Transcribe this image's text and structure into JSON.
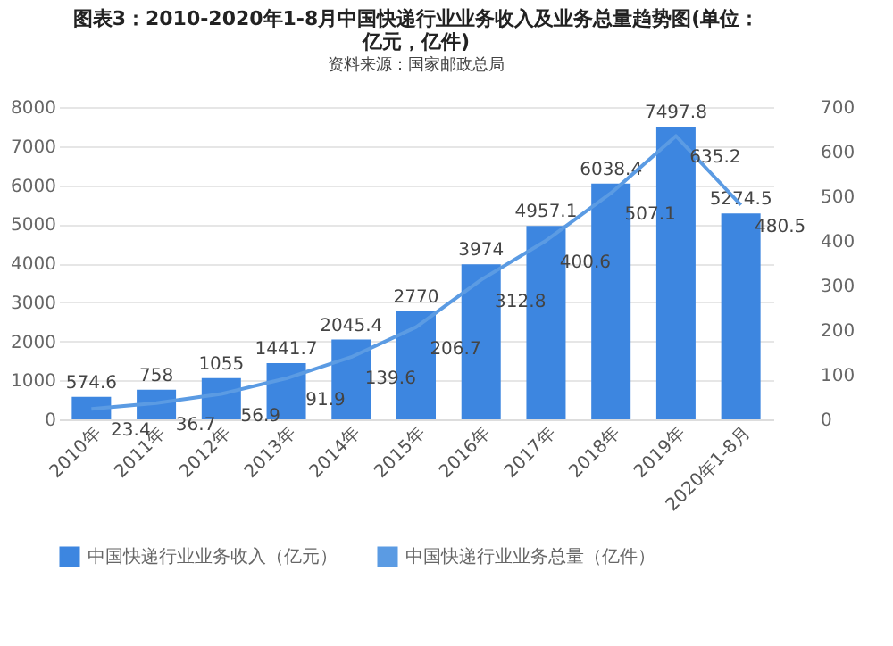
{
  "chart_data": {
    "type": "bar",
    "title": "图表3：2010-2020年1-8月中国快递行业业务收入及业务总量趋势图(单位：亿元，亿件)",
    "categories": [
      "2010年",
      "2011年",
      "2012年",
      "2013年",
      "2014年",
      "2015年",
      "2016年",
      "2017年",
      "2018年",
      "2019年",
      "2020年1-8月"
    ],
    "series": [
      {
        "name": "中国快递行业业务收入（亿元）",
        "color": "#3d86e0",
        "values": [
          574.6,
          758,
          1055,
          1441.7,
          2045.4,
          2770,
          3974,
          4957.1,
          6038.4,
          7497.8,
          5274.5
        ]
      },
      {
        "name": "中国快递行业业务总量（亿件）",
        "type": "line",
        "axis": "y2",
        "color": "#5b9be3",
        "values": [
          23.4,
          36.7,
          56.9,
          91.9,
          139.6,
          206.7,
          312.8,
          400.6,
          507.1,
          635.2,
          480.5
        ]
      }
    ],
    "ylim": [
      0,
      8000
    ],
    "yticks": [
      0,
      1000,
      2000,
      3000,
      4000,
      5000,
      6000,
      7000,
      8000
    ],
    "y2lim": [
      0,
      700
    ],
    "y2ticks": [
      0,
      100,
      200,
      300,
      400,
      500,
      600,
      700
    ],
    "grid": "y",
    "legend": "bottom",
    "data_labels": true,
    "marker": "none",
    "annotations": [
      "资料来源：国家邮政总局"
    ]
  }
}
